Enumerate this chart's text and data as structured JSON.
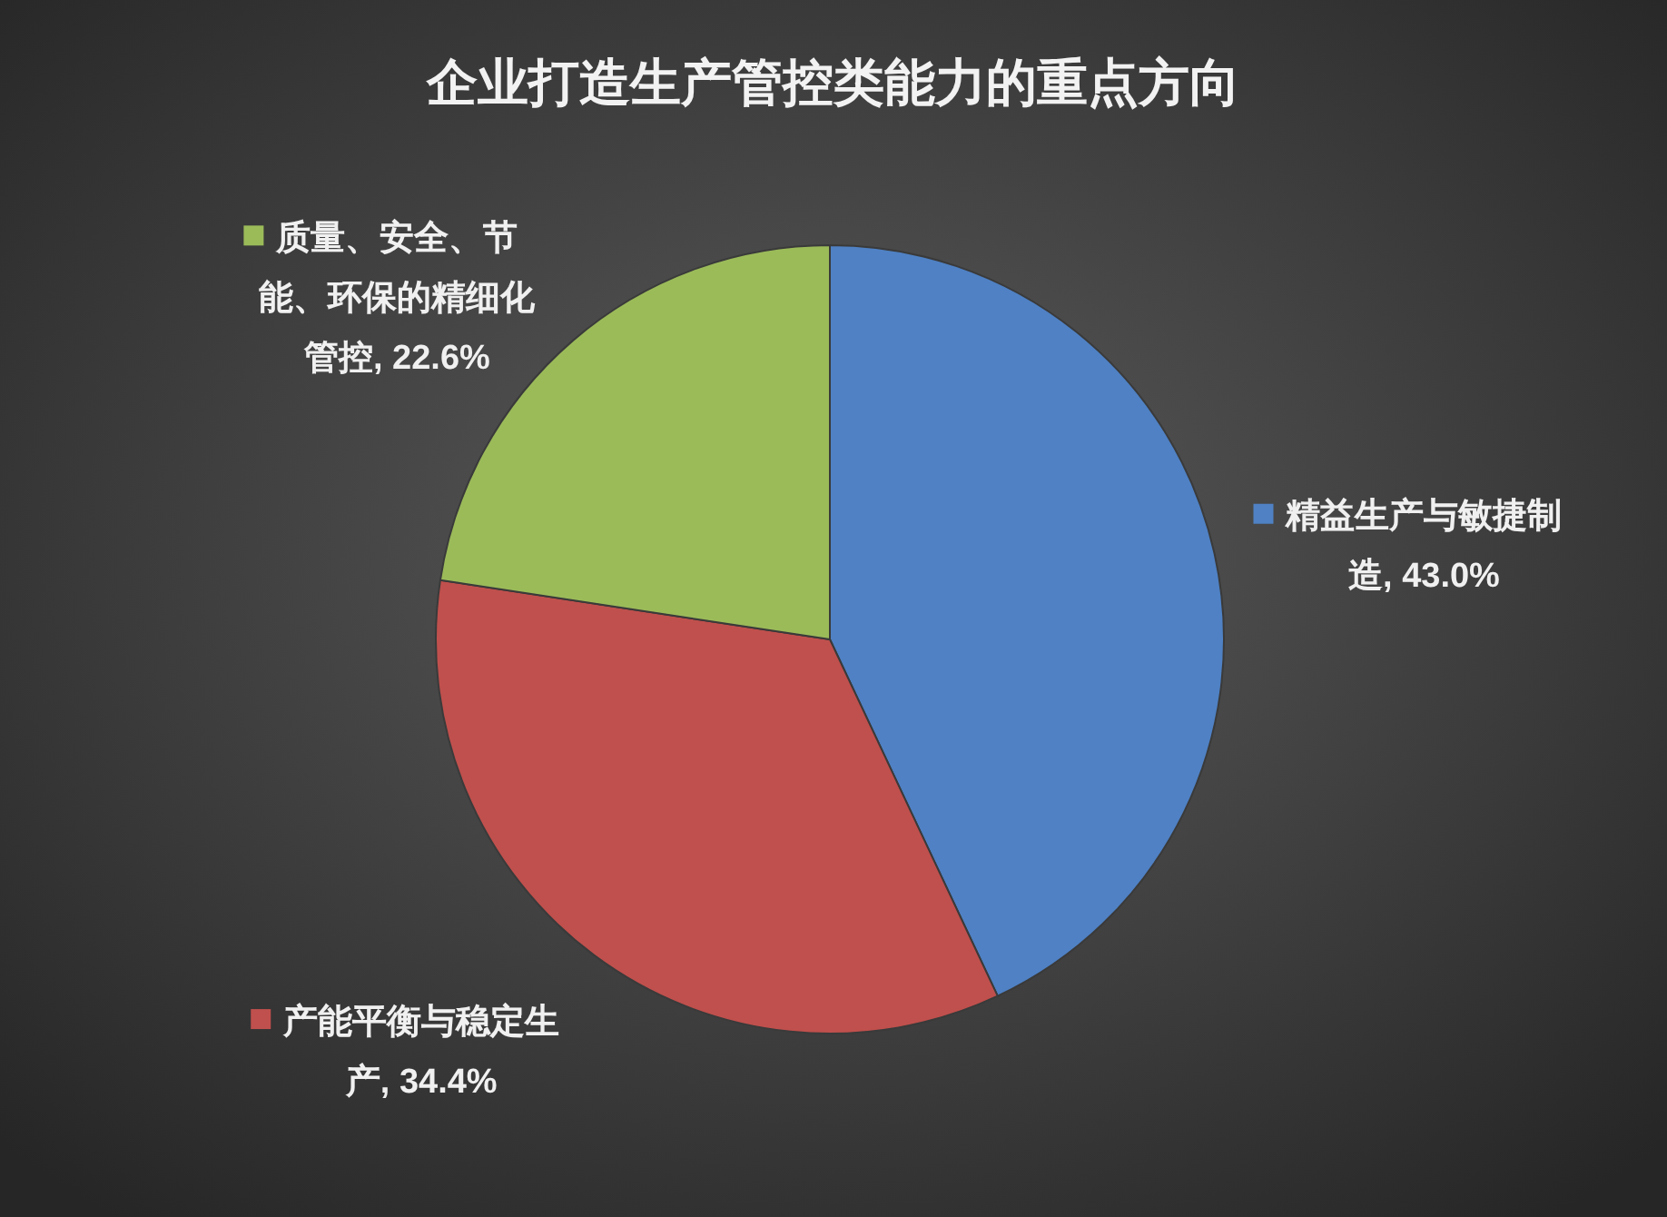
{
  "chart_data": {
    "type": "pie",
    "title": "企业打造生产管控类能力的重点方向",
    "categories": [
      "精益生产与敏捷制造",
      "产能平衡与稳定生产",
      "质量、安全、节能、环保的精细化管控"
    ],
    "values": [
      43.0,
      34.4,
      22.6
    ],
    "colors": [
      "#4f81c4",
      "#c0504d",
      "#9bbb59"
    ],
    "value_labels": [
      "43.0%",
      "34.4%",
      "22.6%"
    ],
    "legend": true
  }
}
